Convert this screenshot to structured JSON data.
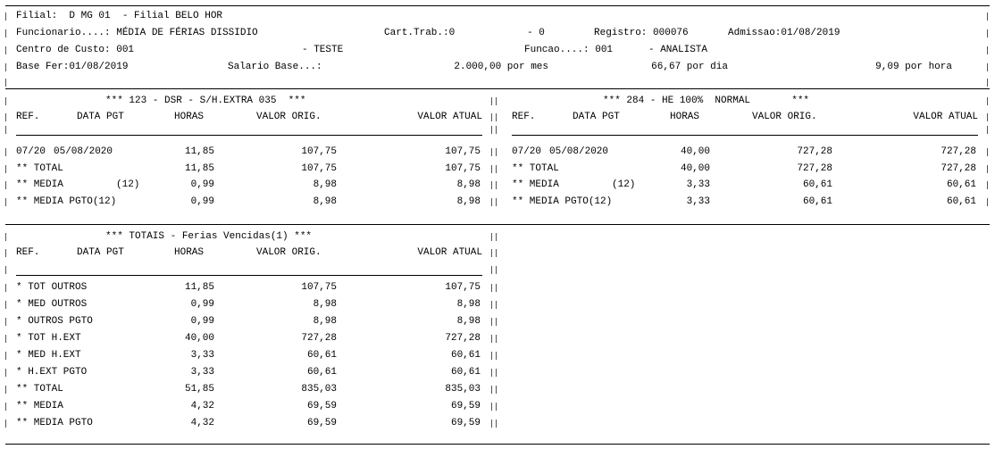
{
  "header": {
    "lines": [
      [
        "Filial:  D MG 01  - Filial BELO HOR"
      ],
      [
        "Funcionario....: MÉDIA DE FÉRIAS DISSIDIO",
        "Cart.Trab.:0",
        "- 0",
        "Registro: 000076",
        "Admissao:01/08/2019"
      ],
      [
        "Centro de Custo: 001",
        "- TESTE",
        "Funcao....: 001",
        "- ANALISTA"
      ],
      [
        "Base Fer:01/08/2019",
        "Salario Base...:",
        "2.000,00 por mes",
        "66,67 por dia",
        "9,09 por hora"
      ]
    ]
  },
  "tables": [
    {
      "title": "*** 123 - DSR - S/H.EXTRA 035  ***",
      "columns": [
        "REF.",
        "DATA PGT",
        "HORAS",
        "VALOR ORIG.",
        "VALOR ATUAL"
      ],
      "rows": [
        {
          "ref": "07/20",
          "data": "05/08/2020",
          "horas": "11,85",
          "orig": "107,75",
          "atual": "107,75"
        },
        {
          "ref": "** TOTAL",
          "horas": "11,85",
          "orig": "107,75",
          "atual": "107,75"
        },
        {
          "ref": "** MEDIA",
          "data": "(12)",
          "horas": "0,99",
          "orig": "8,98",
          "atual": "8,98"
        },
        {
          "ref": "** MEDIA PGTO(12)",
          "horas": "0,99",
          "orig": "8,98",
          "atual": "8,98"
        }
      ]
    },
    {
      "title": "*** 284 - HE 100%  NORMAL       ***",
      "columns": [
        "REF.",
        "DATA PGT",
        "HORAS",
        "VALOR ORIG.",
        "VALOR ATUAL"
      ],
      "rows": [
        {
          "ref": "07/20",
          "data": "05/08/2020",
          "horas": "40,00",
          "orig": "727,28",
          "atual": "727,28"
        },
        {
          "ref": "** TOTAL",
          "horas": "40,00",
          "orig": "727,28",
          "atual": "727,28"
        },
        {
          "ref": "** MEDIA",
          "data": "(12)",
          "horas": "3,33",
          "orig": "60,61",
          "atual": "60,61"
        },
        {
          "ref": "** MEDIA PGTO(12)",
          "horas": "3,33",
          "orig": "60,61",
          "atual": "60,61"
        }
      ]
    },
    {
      "title": "*** TOTAIS - Ferias Vencidas(1) ***",
      "columns": [
        "REF.",
        "DATA PGT",
        "HORAS",
        "VALOR ORIG.",
        "VALOR ATUAL"
      ],
      "rows": [
        {
          "ref": "* TOT OUTROS",
          "horas": "11,85",
          "orig": "107,75",
          "atual": "107,75"
        },
        {
          "ref": "* MED OUTROS",
          "horas": "0,99",
          "orig": "8,98",
          "atual": "8,98"
        },
        {
          "ref": "* OUTROS PGTO",
          "horas": "0,99",
          "orig": "8,98",
          "atual": "8,98"
        },
        {
          "ref": "* TOT H.EXT",
          "horas": "40,00",
          "orig": "727,28",
          "atual": "727,28"
        },
        {
          "ref": "* MED H.EXT",
          "horas": "3,33",
          "orig": "60,61",
          "atual": "60,61"
        },
        {
          "ref": "* H.EXT PGTO",
          "horas": "3,33",
          "orig": "60,61",
          "atual": "60,61"
        },
        {
          "ref": "** TOTAL",
          "horas": "51,85",
          "orig": "835,03",
          "atual": "835,03"
        },
        {
          "ref": "** MEDIA",
          "horas": "4,32",
          "orig": "69,59",
          "atual": "69,59"
        },
        {
          "ref": "** MEDIA PGTO",
          "horas": "4,32",
          "orig": "69,59",
          "atual": "69,59"
        }
      ]
    }
  ]
}
